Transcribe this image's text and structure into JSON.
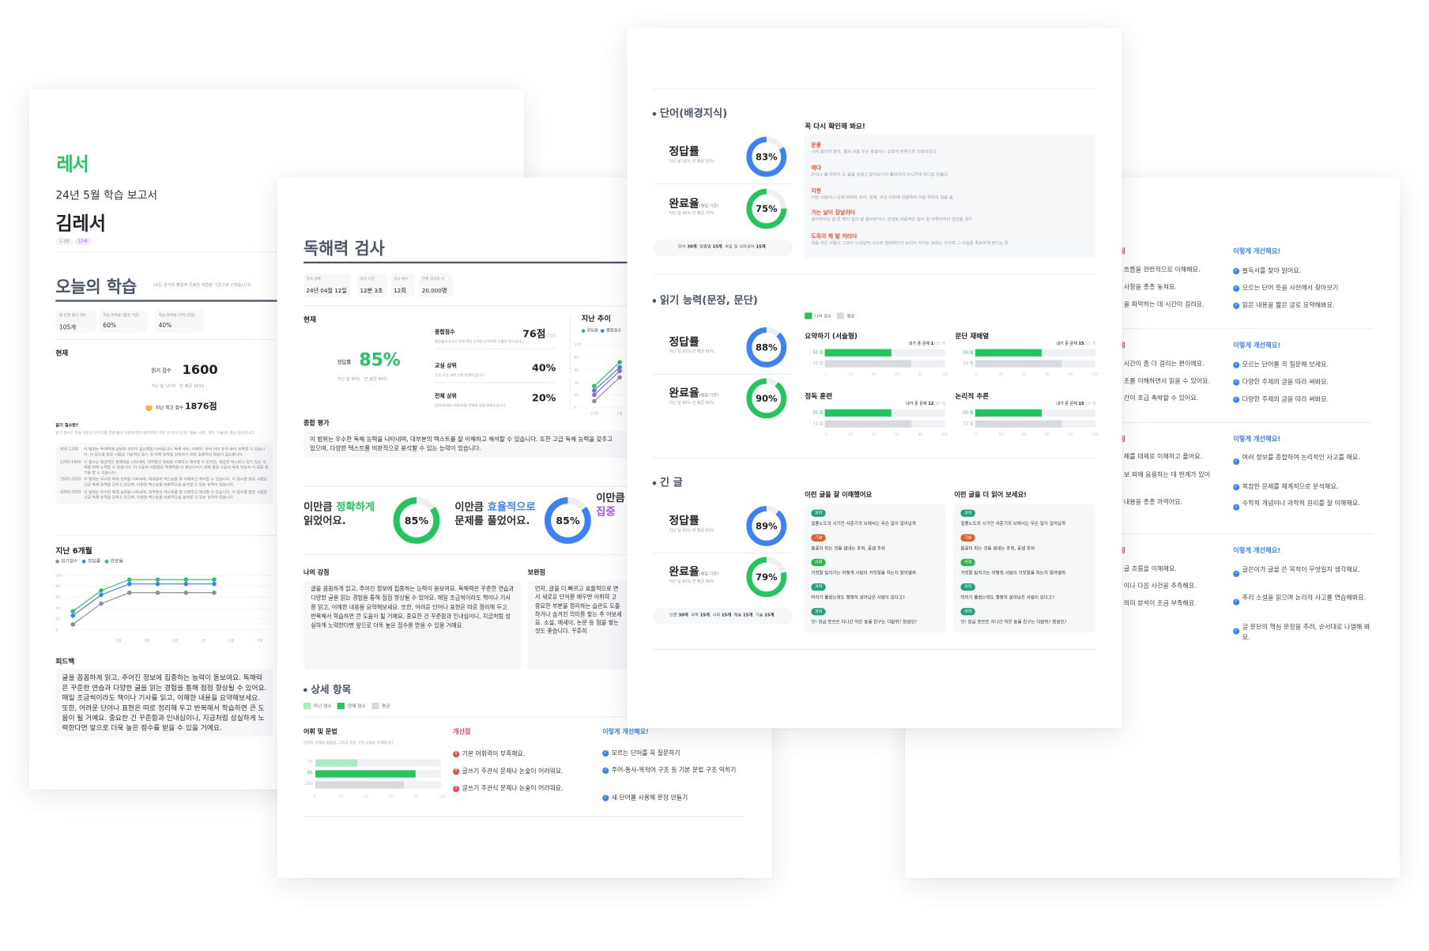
{
  "colors": {
    "green": "#22c55e",
    "blue": "#3b82f6",
    "purple": "#a855f7",
    "gray": "#8b8f98",
    "light_green": "#a7ecc0",
    "avg_gray": "#d6d9de",
    "heading": "#4a5568",
    "red": "#e8553c",
    "pink": "#ef4458"
  },
  "report": {
    "logo": "레서",
    "title": "24년 5월 학습 보고서",
    "name": "김레서",
    "tags": [
      "1-2반",
      "13세"
    ],
    "today_title": "오늘의 학습",
    "today_note": "(모든 분석은 평일에 완료한 학습을 기준으로 산정됩니다)",
    "stats": [
      {
        "label": "총 문제 풀이 개수",
        "value": "105개"
      },
      {
        "label": "학습 완료율 (평일 기준)",
        "value": "60%"
      },
      {
        "label": "학습 완료율 (주말 포함)",
        "value": "40%"
      }
    ],
    "current_label": "현재",
    "score_label": "읽기 점수",
    "score": "1600",
    "score_sub": [
      "지난 달 1570",
      "반 평균 1630"
    ],
    "best_label": "지난 최고 점수",
    "best_value": "1876점",
    "about_title": "읽기 점수란?",
    "about_desc": "읽기 점수는 학습 지문의 난이도별 문제 풀이 수준에 따라 매겨지며, 지문 각 분야 (인문, 예술, 사회, 과학, 기술)의 평균 점수입니다.",
    "levels": [
      {
        "range": "800-1200",
        "desc": "이 범위는 독해력에 상당한 개선이 필요함을 나타냅니다. 독해 속도, 어휘력, 단어 의미 능력 등이 부족할 수 있습니다. 이 점수를 받은 사람은 기본적인 읽기 및 이해 능력을 강화하기 위한 집중적인 학습이 필요합니다."
      },
      {
        "range": "1200-1600",
        "desc": "이 점수는 평균적인 독해력을 나타내며, 대부분의 정보를 이해하고 해석할 수 있지만, 복잡한 텍스트나 깊이 있는 이해를 위해 노력할 수 있습니다. 이 수준의 사람들은 독해력을 더 향상시키기 위해 중급 수준의 독해 연습과 더 많은 읽기를 할 수 있습니다."
      },
      {
        "range": "1600-2000",
        "desc": "이 범위는 우수한 독해 능력을 나타내며, 대부분의 텍스트를 잘 이해하고 해석할 수 있습니다. 이 점수를 받은 사람은 고급 독해 능력을 갖추고 있으며, 다양한 텍스트를 비판적으로 분석할 수 있는 능력이 있습니다."
      },
      {
        "range": "2000-2500",
        "desc": "이 범위는 우수한 독해 능력을 나타내며, 대부분의 텍스트를 잘 이해하고 해석할 수 있습니다. 이 점수를 받은 사람은 고급 독해 능력을 갖추고 있으며, 다양한 텍스트를 비판적으로 분석할 수 있는 능력이 있습니다."
      }
    ],
    "trend_title": "지난 6개월",
    "feedback_title": "피드백",
    "feedback_text": "글을 꼼꼼하게 읽고, 주어진 정보에 집중하는 능력이 돋보여요. 독해력은 꾸준한 연습과 다양한 글을 읽는 경험을 통해 점점 향상될 수 있어요. 매일 조금씩이라도 책이나 기사를 읽고, 이해한 내용을 요약해보세요. 또한, 어려운 단어나 표현은 따로 정리해 두고 반복해서 학습하면 큰 도움이 될 거예요. 중요한 건 꾸준함과 인내심이니, 지금처럼 성실하게 노력한다면 앞으로 더욱 높은 점수를 받을 수 있을 거예요."
  },
  "test": {
    "title": "독해력 검사",
    "info": [
      {
        "label": "검사 날짜",
        "value": "24년 04월 12일"
      },
      {
        "label": "검사 시간",
        "value": "12분 3초"
      },
      {
        "label": "검사 횟수",
        "value": "12회"
      },
      {
        "label": "전체 검사자 수",
        "value": "20,000명"
      }
    ],
    "current_label": "현재",
    "accuracy_label": "정답률",
    "accuracy": "85%",
    "accuracy_sub": [
      "지난 달 80%",
      "반 평균 40%"
    ],
    "metrics": [
      {
        "label": "종합점수",
        "value": "76점",
        "suffix": "/100",
        "desc": "정답률과 6가지 독해 핵심 능력을 분석하여 도출한 점수입니다."
      },
      {
        "label": "교실 상위",
        "value": "40%",
        "suffix": "",
        "desc": "소속 교실 내의 상위 퍼센트입니다."
      },
      {
        "label": "전체 상위",
        "value": "20%",
        "suffix": "",
        "desc": "검사자(에서 사용자)를 전체의 상위 퍼센트입니다."
      }
    ],
    "trend_title": "지난 추이",
    "trend_legend": [
      "정답률",
      "종합점수"
    ],
    "overall_title": "종합 평가",
    "overall_text": "이 범위는 우수한 독해 능력을 나타내며, 대부분의 텍스트를 잘 이해하고 해석할 수 있습니다. 또한 고급 독해 능력을 갖추고 있으며, 다양한 텍스트를 비판적으로 분석할 수 있는 능력이 있습니다.",
    "highlights": [
      {
        "pre": "이만큼 ",
        "em": "정확하게",
        "post": "읽었어요.",
        "value": 85,
        "label": "85%",
        "color": "#22c55e"
      },
      {
        "pre": "이만큼 ",
        "em": "효율적으로",
        "post": "문제를 풀었어요.",
        "value": 85,
        "label": "85%",
        "color": "#3b82f6"
      },
      {
        "pre": "이만큼",
        "em": "집중",
        "post": "",
        "color": "#a855f7"
      }
    ],
    "strength_title": "나의 강점",
    "strength_text": "글을 꼼꼼하게 읽고, 주어진 정보에 집중하는 능력이 돋보여요. 독해력은 꾸준한 연습과 다양한 글을 읽는 경험을 통해 점점 향상될 수 있어요. 매일 조금씩이라도 책이나 기사를 읽고, 이해한 내용을 요약해보세요. 또한, 어려운 단어나 표현은 따로 정리해 두고 반복해서 학습하면 큰 도움이 될 거예요. 중요한 건 꾸준함과 인내심이니, 지금처럼 성실하게 노력한다면 앞으로 더욱 높은 점수를 받을 수 있을 거예요.",
    "weak_title": "보완점",
    "weak_text": "먼저, 글을 더 빠르고 효율적으로 면서 새로운 단어를 배우면 어휘력 고 중요한 부분을 정리하는 습관도 도출하거나 숨겨진 의미를 찾는 추 어보세요. 소설, 에세이, 논문 등 험을 쌓는 것도 좋습니다. 꾸준히",
    "detail_title": "상세 항목",
    "detail_legend": [
      "지난 점수",
      "현재 점수",
      "평균"
    ],
    "vocab_title": "어휘 및 문법",
    "vocab_desc": "단어의 이해와 맞춤법, 그리고 문장 구성 규칙을 이해합니다.",
    "improve_title": "개선점",
    "improve_items": [
      "기본 어휘력이 부족해요.",
      "글쓰기 주관식 문제나 논술이 어려워요.",
      "글쓰기 주관식 문제나 논술이 어려워요."
    ],
    "howto_title": "이렇게 개선해요!",
    "howto_items": [
      "모르는 단어를 꼭 질문하기",
      "주어-동사-목적어 구조 등 기본 문법 구조 익히기",
      "새 단어를 사용해 문장 만들기"
    ]
  },
  "detail": {
    "vocab": {
      "title": "단어(배경지식)",
      "accuracy_label": "정답률",
      "accuracy": 83,
      "accuracy_text": "83%",
      "accuracy_sub": "지난 달 40%   반 평균 50%",
      "completion_label": "완료율",
      "completion_note": "(평일 기준)",
      "completion": 75,
      "completion_text": "75%",
      "completion_sub": "지난 달 40%   반 평균 70%",
      "counts": [
        {
          "k": "단어",
          "v": "30개"
        },
        {
          "k": "맞춤법",
          "v": "15개"
        },
        {
          "k": "속담 및 사자성어",
          "v": "15개"
        }
      ],
      "review_title": "꼭 다시 확인해 봐요!",
      "review": [
        {
          "term": "운율",
          "def": "시의 음악적 형식. 음의 리듬 또는 동음이나 유음의 반복으로 이루어진다."
        },
        {
          "term": "매다",
          "def": "끈이나 줄 따위의 두 끝을 엇걸고 잡아당기어 풀어지지 아니하게 마디를 만들다."
        },
        {
          "term": "지원",
          "def": "어떤 사람이나 단체 따위의 주의, 정책, 의견 따위에 찬동하여 이를 위하여 힘을 씀"
        },
        {
          "term": "가는 날이 장날이다",
          "def": "생각하지도 않 뜻 밖의 일이 잘 들어맞거나, 반대로 마음먹은 일이 잘 이루어지지 않았을 경우"
        },
        {
          "term": "도둑이 제 발 저리다",
          "def": "죄를 지은 사람이 그것이 드러날까 스스로 염려하다가 도리어 자기도 모르는 사이에 그 사실을 폭로하게 된다는 뜻"
        }
      ]
    },
    "reading": {
      "title": "읽기 능력(문장, 문단)",
      "accuracy_label": "정답률",
      "accuracy": 88,
      "accuracy_text": "88%",
      "accuracy_sub": "지난 달 80%   반 평균 60%",
      "completion_label": "완료율",
      "completion_note": "(평일 기준)",
      "completion": 90,
      "completion_text": "90%",
      "completion_sub": "지난 달 90%   반 평균 80%",
      "legend": [
        "나의 점수",
        "평균"
      ],
      "skills": [
        {
          "name": "요약하기 (서술형)",
          "solved_label": "내가 푼 문제",
          "solved": "1",
          "total": "/15 개",
          "mine": 55,
          "avg": 72
        },
        {
          "name": "문단 재배열",
          "solved_label": "내가 푼 문제",
          "solved": "15",
          "total": "/12 개",
          "mine": 55,
          "avg": 72
        },
        {
          "name": "정독 훈련",
          "solved_label": "내가 푼 문제",
          "solved": "12",
          "total": "/15 개",
          "mine": 55,
          "avg": 72
        },
        {
          "name": "논리적 추론",
          "solved_label": "내가 푼 문제",
          "solved": "15",
          "total": "/12 개",
          "mine": 55,
          "avg": 72
        }
      ],
      "unit": "점"
    },
    "long": {
      "title": "긴 글",
      "accuracy_label": "정답률",
      "accuracy": 89,
      "accuracy_text": "89%",
      "accuracy_sub": "지난 달 80%   반 평균 63%",
      "completion_label": "완료율",
      "completion_note": "(평일 기준)",
      "completion": 79,
      "completion_text": "79%",
      "completion_sub": "지난 달 80%   반 평균 90%",
      "counts": [
        {
          "k": "인문",
          "v": "30개"
        },
        {
          "k": "과학",
          "v": "15개"
        },
        {
          "k": "사회",
          "v": "15개"
        },
        {
          "k": "예술",
          "v": "15개"
        },
        {
          "k": "기술",
          "v": "15개"
        }
      ],
      "good_title": "이런 글을 잘 이해했어요",
      "more_title": "이런 글을 더 읽어 보세요!",
      "articles": [
        {
          "tag": "과학",
          "color": "#1fa37a",
          "text": "질풍노도의 시기인 사춘기의 뇌에서는 무슨 일이 일어날까"
        },
        {
          "tag": "기술",
          "color": "#e0622a",
          "text": "봄꽃이 피는 것을 샘내는 추위, 꽃샘 추위"
        },
        {
          "tag": "사회",
          "color": "#2fb84f",
          "text": "거짓말 탐지기는 어떻게 사람이 거짓말을 하는지 알아낼까"
        },
        {
          "tag": "과학",
          "color": "#1fa37a",
          "text": "머리가 뚫렸는데도 멀쩡히 살아남은 사람이 있다고?"
        },
        {
          "tag": "과학",
          "color": "#1fa37a",
          "text": "앗! 방금 쪼르르 지나간 작은 동물 친구는 다람쥐? 청설모?"
        }
      ]
    }
  },
  "advice": {
    "improve_title": "개선점",
    "howto_title": "이렇게 개선해요!",
    "sections": [
      {
        "left": [
          "흐름을 전반적으로 이해해요.",
          "사항을 종종 놓쳐요.",
          "을 파악하는 데 시간이 걸려요."
        ],
        "right": [
          "필독서를 찾아 읽어요.",
          "모르는 단어 뜻을 사전에서 찾아보기",
          "읽은 내용을 짧은 글로 요약해봐요."
        ]
      },
      {
        "left": [
          "시간이 좀 더 걸리는 편이에요.",
          "조를 이해하면서 읽을 수 있어요.",
          "간이 조금 촉박할 수 있어요."
        ],
        "right": [
          "모르는 단어를 꼭 질문해 보세요.",
          "다양한 주제의 글을 따라 써봐요.",
          "다양한 주제의 글을 따라 써봐요."
        ]
      },
      {
        "left": [
          "제를 대체로 이해하고 풀어요.",
          "보 외에 응용하는 데 한계가 있어",
          "내용을 종종 까먹어요."
        ],
        "right": [
          "여러 정보를 종합하여 논리적인 사고를 해요.",
          "복잡한 문제를 체계적으로 분석해요.",
          "수학적 개념이나 과학적 원리를 잘 이해해요."
        ]
      },
      {
        "left": [
          "글 흐름을 이해해요.",
          "이나 다음 사건을 추측해요.",
          "의미 분석이 조금 부족해요."
        ],
        "right": [
          "글쓴이가 글을 쓴 목적이 무엇일지 생각해요.",
          "추리 소설을 읽으며 논리적 사고를 연습해봐요.",
          "글 문단의 핵심 문장을 추려, 순서대로 나열해 봐요."
        ]
      }
    ]
  },
  "chart_data": [
    {
      "type": "line",
      "title": "지난 6개월",
      "categories": [
        "2월",
        "3월",
        "3월",
        "3월",
        "4월",
        "5월"
      ],
      "ylim": [
        0,
        100
      ],
      "yticks": [
        0,
        20,
        40,
        60,
        80,
        100
      ],
      "grid": true,
      "legend": "top-left",
      "series": [
        {
          "name": "읽기점수",
          "color": "#8b8f98",
          "values": [
            10,
            48,
            68,
            68,
            68,
            68
          ]
        },
        {
          "name": "정답률",
          "color": "#3b82f6",
          "values": [
            26,
            64,
            84,
            84,
            84,
            84
          ]
        },
        {
          "name": "완료율",
          "color": "#22c55e",
          "values": [
            34,
            72,
            92,
            92,
            92,
            92
          ]
        }
      ]
    },
    {
      "type": "line",
      "title": "지난 추이",
      "categories": [
        "12월",
        "1월"
      ],
      "ylim": [
        0,
        100
      ],
      "yticks": [
        0,
        20,
        40,
        60,
        80,
        100
      ],
      "grid": true,
      "series": [
        {
          "name": "정답률",
          "color": "#22c55e",
          "values": [
            34,
            72
          ]
        },
        {
          "name": "종합점수",
          "color": "#3b82f6",
          "values": [
            27,
            64
          ]
        },
        {
          "color": "#a855f7",
          "values": [
            20,
            58
          ]
        },
        {
          "color": "#8b8f98",
          "values": [
            10,
            48
          ]
        }
      ]
    },
    {
      "type": "bar",
      "title": "어휘 및 문법",
      "categories": [
        "지난 점수",
        "현재 점수",
        "평균"
      ],
      "values": [
        25,
        85,
        100
      ],
      "xlim": [
        0,
        100
      ],
      "xticks": [
        0,
        20,
        40,
        60,
        80,
        100
      ]
    }
  ]
}
